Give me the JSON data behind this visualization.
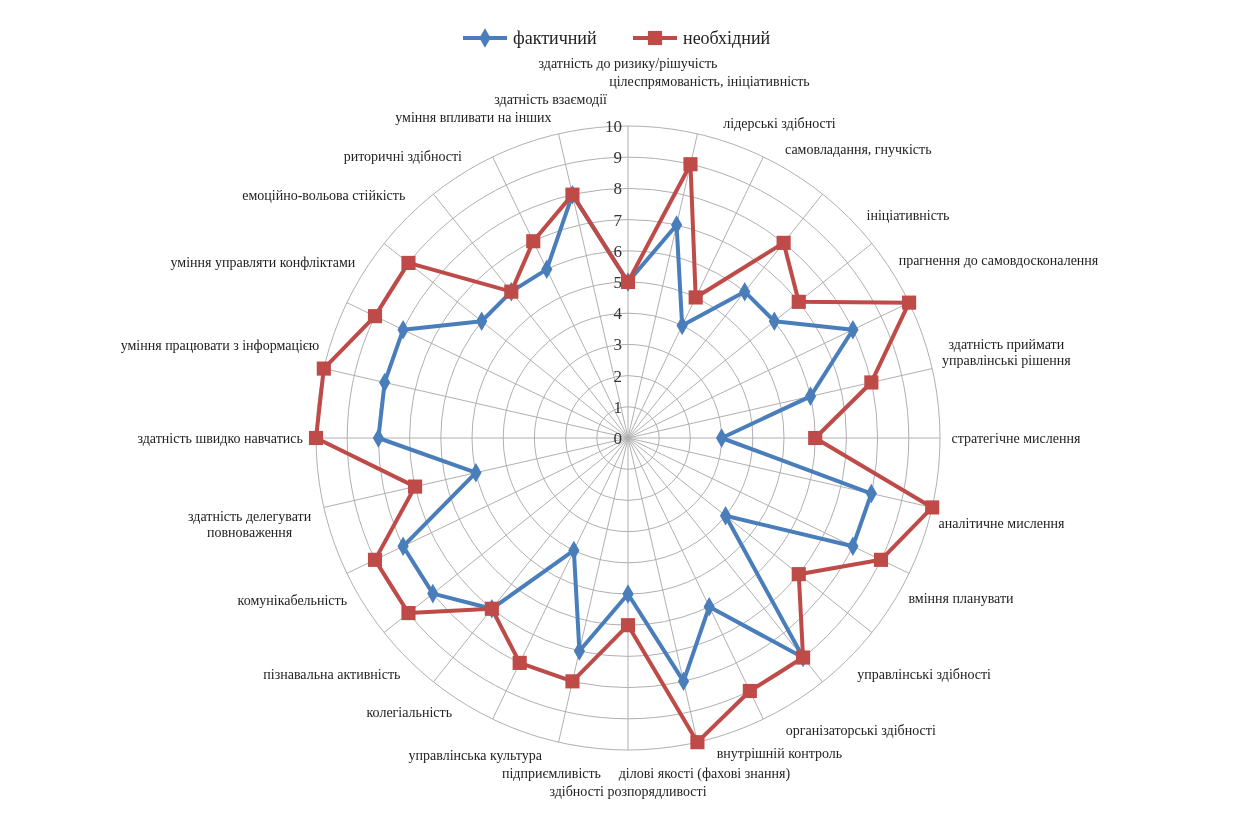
{
  "chart_data": {
    "type": "radar",
    "legend": "top",
    "grid": true,
    "ylim": [
      0,
      10
    ],
    "yticks": [
      0,
      1,
      2,
      3,
      4,
      5,
      6,
      7,
      8,
      9,
      10
    ],
    "categories": [
      "здатність до ризику/рішучість",
      "цілеспрямованість, ініціативність",
      "лідерські здібності",
      "самовладання, гнучкість",
      "ініціативність",
      "прагнення до самовдосконалення",
      "здатність приймати управлінські рішення",
      "стратегічне мислення",
      "аналітичне мислення",
      "вміння планувати",
      "управлінські здібності",
      "організаторські здібності",
      "внутрішній контроль",
      "ділові якості (фахові знання)",
      "здібності розпорядливості",
      "підприємливість",
      "управлінська культура",
      "колегіальність",
      "пізнавальна активність",
      "комунікабельність",
      "здатність делегувати повноваження",
      "здатність швидко навчатись",
      "уміння працювати з інформацією",
      "уміння управляти конфліктами",
      "емоційно-вольова стійкість",
      "риторичні здібності",
      "уміння впливати на інших",
      "здатність взаємодії"
    ],
    "series": [
      {
        "name": "фактичний",
        "color": "#4a7ebb",
        "marker": "diamond",
        "values": [
          5,
          7,
          4,
          6,
          6,
          8,
          6,
          3,
          8,
          8,
          4,
          9,
          6,
          8,
          5,
          7,
          4,
          7,
          8,
          8,
          5,
          8,
          8,
          8,
          6,
          6,
          6,
          8
        ]
      },
      {
        "name": "необхідний",
        "color": "#be4b48",
        "marker": "square",
        "values": [
          5,
          9,
          5,
          8,
          7,
          10,
          8,
          6,
          10,
          9,
          7,
          9,
          9,
          10,
          6,
          8,
          8,
          7,
          9,
          9,
          7,
          10,
          10,
          9,
          9,
          6,
          7,
          8
        ]
      }
    ]
  }
}
